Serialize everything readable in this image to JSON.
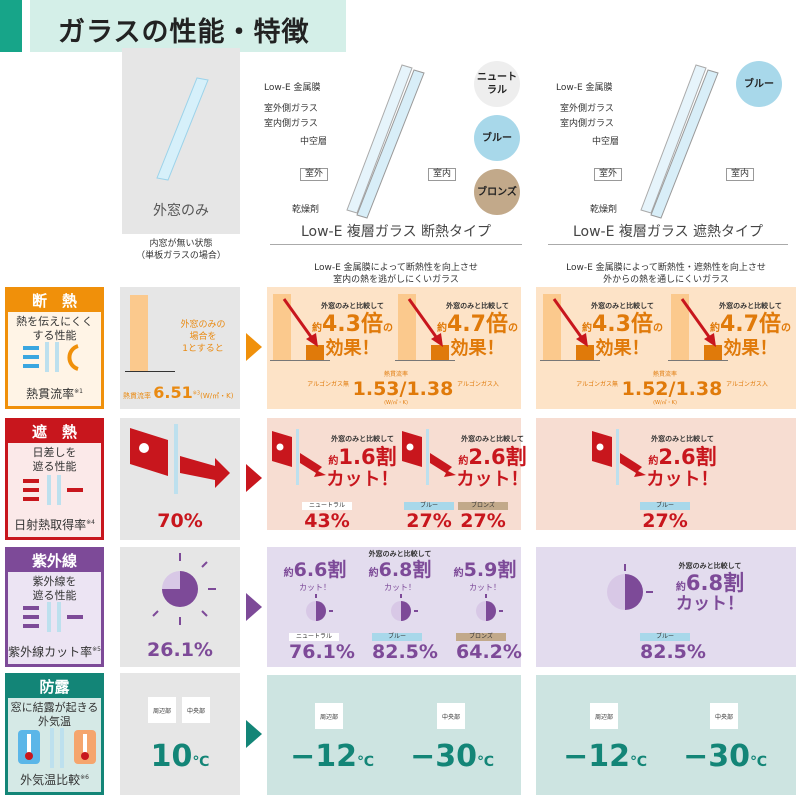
{
  "header": {
    "title": "ガラスの性能・特徴"
  },
  "columns": {
    "outer": {
      "title": "外窓のみ",
      "note1": "内窓が無い状態",
      "note2": "（単板ガラスの場合）"
    },
    "insulation": {
      "title": "Low-E 複層ガラス 断熱タイプ",
      "desc1": "Low-E 金属膜によって断熱性を向上させ",
      "desc2": "室内の熱を逃がしにくいガラス"
    },
    "shielding": {
      "title": "Low-E 複層ガラス 遮熱タイプ",
      "desc1": "Low-E 金属膜によって断熱性・遮熱性を向上させ",
      "desc2": "外からの熱を通しにくいガラス"
    }
  },
  "diagram": {
    "low_e": "Low-E 金属膜",
    "outer_glass": "室外側ガラス",
    "inner_glass": "室内側ガラス",
    "air": "中空層",
    "outside": "室外",
    "inside": "室内",
    "desiccant": "乾燥剤"
  },
  "colors_badges": {
    "neutral": "ニュートラル",
    "blue": "ブルー",
    "bronze": "ブロンズ"
  },
  "compare": "外窓のみと比較して",
  "approx": "約",
  "rows": {
    "heat": {
      "title": "断　熱",
      "desc1": "熱を伝えにくく",
      "desc2": "する性能",
      "foot": "熱貫流率",
      "note": "※1",
      "color": "#f0900a",
      "outer_text1": "外窓のみの",
      "outer_text2": "場合を",
      "outer_text3": "1とすると",
      "outer_label": "熱貫流率",
      "outer_value": "6.51",
      "outer_note": "※3",
      "outer_unit": "(W/㎡・K)",
      "ins_a": "4.3",
      "ins_b": "4.7",
      "times": "倍",
      "of": "の",
      "effect": "効果！",
      "ins_value": "1.53/1.38",
      "shd_value": "1.52/1.38",
      "value_label": "熱貫流率",
      "argon_none": "アルゴンガス無",
      "argon_with": "アルゴンガス入",
      "unit": "(W/㎡・K)"
    },
    "solar": {
      "title": "遮　熱",
      "desc1": "日差しを",
      "desc2": "遮る性能",
      "foot": "日射熱取得率",
      "note": "※4",
      "color": "#c8161d",
      "outer_value": "70%",
      "ins_a": "1.6",
      "ins_b": "2.6",
      "shd": "2.6",
      "wari": "割",
      "cut": "カット！",
      "ins_neutral": "43%",
      "ins_blue": "27%",
      "ins_bronze": "27%",
      "shd_blue": "27%"
    },
    "uv": {
      "title": "紫外線",
      "desc1": "紫外線を",
      "desc2": "遮る性能",
      "foot": "紫外線カット率",
      "note": "※5",
      "color": "#7d4a98",
      "outer_value": "26.1%",
      "ins_a": "6.6",
      "ins_b": "6.8",
      "ins_c": "5.9",
      "shd": "6.8",
      "wari": "割",
      "cut": "カット！",
      "ins_neutral": "76.1%",
      "ins_blue": "82.5%",
      "ins_bronze": "64.2%",
      "shd_blue": "82.5%"
    },
    "dew": {
      "title": "防露",
      "desc1": "窓に結露が起きる",
      "desc2": "外気温",
      "foot": "外気温比較",
      "note": "※6",
      "color": "#138577",
      "edge": "周辺部",
      "center": "中央部",
      "outer_value": "10",
      "ins_value": "−12",
      "ins_value2": "−30",
      "shd_value": "−12",
      "shd_value2": "−30",
      "unit": "℃"
    }
  }
}
